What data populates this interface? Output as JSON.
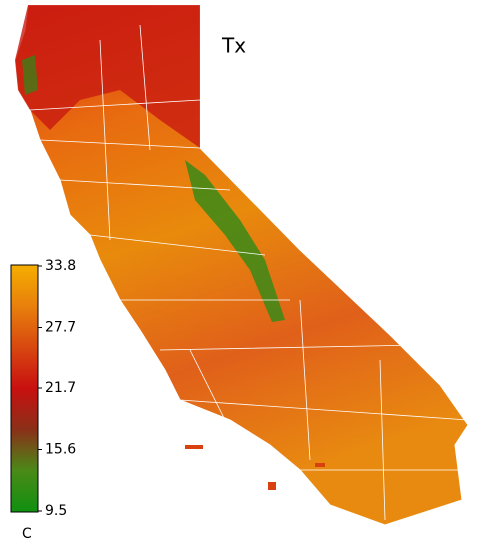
{
  "map": {
    "title": "Tx",
    "legend": {
      "unit": "C",
      "lim": [
        9.5,
        33.8
      ],
      "ticks": [
        33.8,
        27.7,
        21.7,
        15.6,
        9.5
      ],
      "colors": [
        "#f5ae00",
        "#e8800c",
        "#d84810",
        "#c81010",
        "#8a3018",
        "#4a8a18",
        "#109010"
      ]
    }
  }
}
